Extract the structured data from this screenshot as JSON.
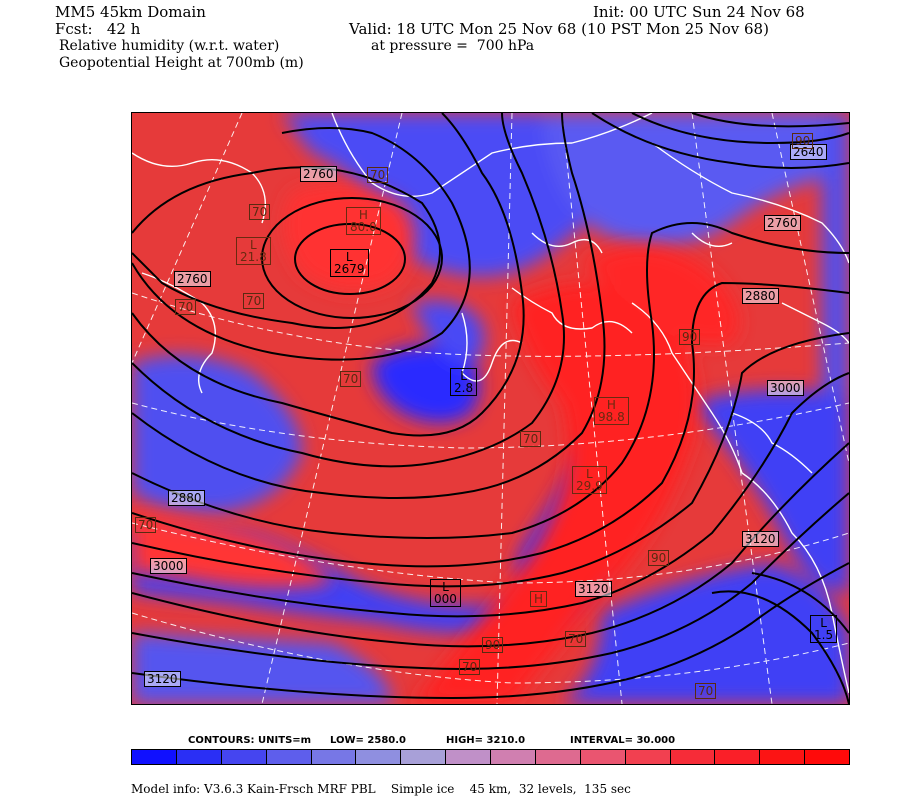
{
  "header": {
    "domain": "MM5 45km Domain",
    "init": "Init: 00 UTC Sun 24 Nov 68",
    "fcst": "Fcst:   42 h",
    "valid": "Valid: 18 UTC Mon 25 Nov 68 (10 PST Mon 25 Nov 68)",
    "field1": "Relative humidity (w.r.t. water)",
    "pressure": "at pressure =  700 hPa",
    "field2": "Geopotential Height at 700mb (m)"
  },
  "colors": {
    "low_humidity": "#2a2aff",
    "high_humidity": "#ff1a1a",
    "coast": "#ffffff",
    "contour": "#000000"
  },
  "map": {
    "height_labels": [
      "2760",
      "2760",
      "2679",
      "2640",
      "2760",
      "2880",
      "3000",
      "2880",
      "3000",
      "3120",
      "3120",
      "3120"
    ],
    "humidity_labels": [
      "70",
      "70",
      "70",
      "70",
      "70",
      "70",
      "70",
      "70",
      "70",
      "70",
      "90",
      "90",
      "90",
      "90"
    ],
    "centers": [
      {
        "kind": "L",
        "value": "21.8"
      },
      {
        "kind": "L",
        "value": "2679"
      },
      {
        "kind": "H",
        "value": "80.0"
      },
      {
        "kind": "L",
        "value": "2.8"
      },
      {
        "kind": "L",
        "value": "1.5"
      },
      {
        "kind": "L",
        "value": "000"
      },
      {
        "kind": "H",
        "value": ""
      },
      {
        "kind": "L",
        "value": "29.9"
      },
      {
        "kind": "H",
        "value": "98.8"
      }
    ]
  },
  "contours_info": {
    "units": "CONTOURS:  UNITS=m",
    "low": "LOW=   2580.0",
    "high": "HIGH=  3210.0",
    "interval": "INTERVAL=    30.000"
  },
  "colorbar": [
    "#1010ff",
    "#2a2ff5",
    "#4545f0",
    "#5e5eec",
    "#7777e6",
    "#8f8fe0",
    "#a8a0d8",
    "#c090c8",
    "#d07fb0",
    "#de6a90",
    "#ea5570",
    "#f24050",
    "#f62c38",
    "#fa1f28",
    "#fc1414",
    "#ff0a0a"
  ],
  "model_info": "Model info: V3.6.3 Kain-Frsch MRF PBL    Simple ice    45 km,  32 levels,  135 sec"
}
